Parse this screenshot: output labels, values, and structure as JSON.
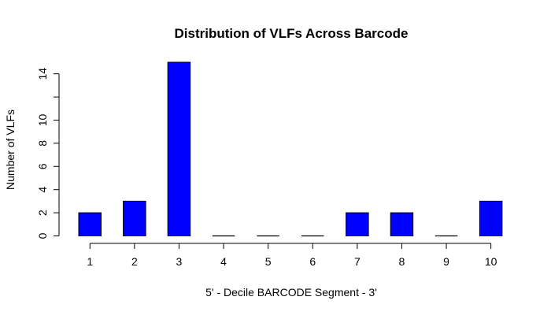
{
  "chart_data": {
    "type": "bar",
    "title": "Distribution of VLFs Across Barcode",
    "xlabel": "5' - Decile BARCODE Segment - 3'",
    "ylabel": "Number of VLFs",
    "categories": [
      "1",
      "2",
      "3",
      "4",
      "5",
      "6",
      "7",
      "8",
      "9",
      "10"
    ],
    "values": [
      2,
      3,
      15,
      0,
      0,
      0,
      2,
      2,
      0,
      3
    ],
    "ylim": [
      0,
      15
    ],
    "y_ticks": [
      0,
      2,
      4,
      6,
      8,
      10,
      14
    ],
    "y_tick_marks": [
      0,
      2,
      4,
      6,
      8,
      10,
      12,
      14
    ],
    "grid": false,
    "legend": "none",
    "colors": {
      "bar_fill": "#0000ff",
      "bar_stroke": "#000000",
      "axis": "#000000"
    }
  }
}
